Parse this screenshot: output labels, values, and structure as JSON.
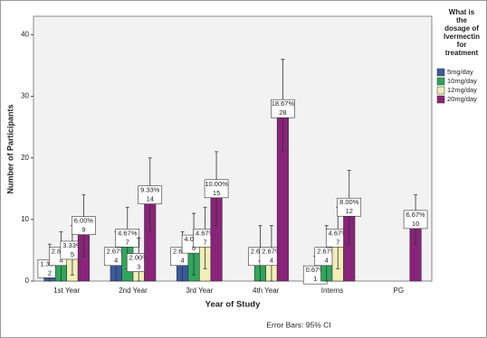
{
  "chart_data": {
    "type": "bar",
    "title_y": "Number of Participants",
    "title_x": "Year of Study",
    "footnote": "Error Bars: 95% CI",
    "legend_title": [
      "What is",
      "the",
      "dosage of",
      "Ivermectin",
      "for",
      "treatment"
    ],
    "categories": [
      "1st Year",
      "2nd Year",
      "3rd Year",
      "4th Year",
      "Interns",
      "PG"
    ],
    "ylim": [
      0,
      43
    ],
    "yticks": [
      0,
      10,
      20,
      30,
      40
    ],
    "series": [
      {
        "name": "5mg/day",
        "color": "#3a5a9e",
        "values": [
          2,
          4,
          4,
          null,
          1,
          null
        ],
        "percent_labels": [
          "1.33%",
          "2.67%",
          "2.67%",
          null,
          "0.67%",
          null
        ],
        "ci_low": [
          0,
          0,
          0,
          null,
          0,
          null
        ],
        "ci_high": [
          6,
          8,
          8,
          null,
          4,
          null
        ]
      },
      {
        "name": "10mg/day",
        "color": "#2fa65c",
        "values": [
          4,
          7,
          6,
          4,
          4,
          null
        ],
        "percent_labels": [
          "2.67%",
          "4.67%",
          "4.00%",
          "2.67%",
          "2.67%",
          null
        ],
        "ci_low": [
          0,
          2,
          1,
          0,
          0,
          null
        ],
        "ci_high": [
          8,
          12,
          11,
          9,
          9,
          null
        ]
      },
      {
        "name": "12mg/day",
        "color": "#f2eeb8",
        "values": [
          5,
          3,
          7,
          4,
          7,
          null
        ],
        "percent_labels": [
          "3.33%",
          "2.00%",
          "4.67%",
          "2.67%",
          "4.67%",
          null
        ],
        "ci_low": [
          1,
          0,
          2,
          0,
          2,
          null
        ],
        "ci_high": [
          9,
          7,
          12,
          9,
          12,
          null
        ]
      },
      {
        "name": "20mg/day",
        "color": "#8a237a",
        "values": [
          9,
          14,
          15,
          28,
          12,
          10
        ],
        "percent_labels": [
          "6.00%",
          "9.33%",
          "10.00%",
          "18.67%",
          "8.00%",
          "6.67%"
        ],
        "ci_low": [
          4,
          8,
          9,
          21,
          6,
          6
        ],
        "ci_high": [
          14,
          20,
          21,
          36,
          18,
          14
        ]
      }
    ]
  }
}
